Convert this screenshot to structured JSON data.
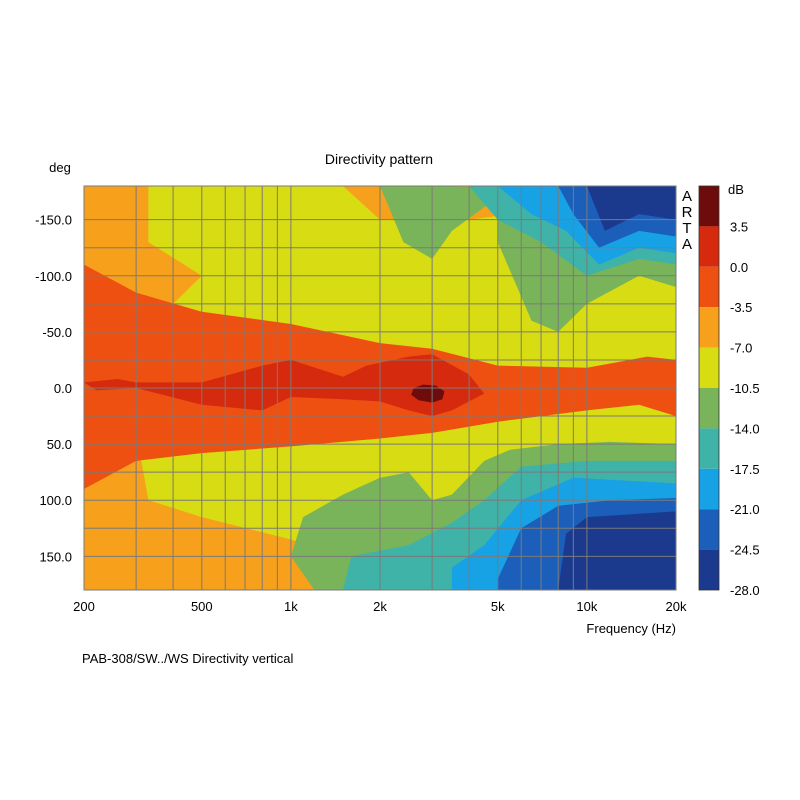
{
  "chart_data": {
    "type": "heatmap",
    "title": "Directivity pattern",
    "ylabel": "deg",
    "xlabel": "Frequency (Hz)",
    "caption": "PAB-308/SW../WS  Directivity vertical",
    "watermark": "ARTA",
    "x_scale": "log",
    "xlim": [
      200,
      20000
    ],
    "ylim": [
      -180,
      180
    ],
    "y_inverted": true,
    "grid": true,
    "x_ticks": [
      {
        "value": 200,
        "label": "200"
      },
      {
        "value": 500,
        "label": "500"
      },
      {
        "value": 1000,
        "label": "1k"
      },
      {
        "value": 2000,
        "label": "2k"
      },
      {
        "value": 5000,
        "label": "5k"
      },
      {
        "value": 10000,
        "label": "10k"
      },
      {
        "value": 20000,
        "label": "20k"
      }
    ],
    "y_ticks": [
      {
        "value": -150,
        "label": "-150.0"
      },
      {
        "value": -100,
        "label": "-100.0"
      },
      {
        "value": -50,
        "label": "-50.0"
      },
      {
        "value": 0,
        "label": "0.0"
      },
      {
        "value": 50,
        "label": "50.0"
      },
      {
        "value": 100,
        "label": "100.0"
      },
      {
        "value": 150,
        "label": "150.0"
      }
    ],
    "colorbar": {
      "unit": "dB",
      "range": [
        -28,
        7
      ],
      "tick_labels": [
        "3.5",
        "0.0",
        "-3.5",
        "-7.0",
        "-10.5",
        "-14.0",
        "-17.5",
        "-21.0",
        "-24.5",
        "-28.0"
      ],
      "bands": [
        {
          "from": 3.5,
          "to": 7,
          "color": "#6e0b0b"
        },
        {
          "from": 0,
          "to": 3.5,
          "color": "#d52a0d"
        },
        {
          "from": -3.5,
          "to": 0,
          "color": "#ee5012"
        },
        {
          "from": -7,
          "to": -3.5,
          "color": "#f6a01c"
        },
        {
          "from": -10.5,
          "to": -7,
          "color": "#d8dc12"
        },
        {
          "from": -14,
          "to": -10.5,
          "color": "#79b45a"
        },
        {
          "from": -17.5,
          "to": -14,
          "color": "#3fb3a8"
        },
        {
          "from": -21,
          "to": -17.5,
          "color": "#18a2e6"
        },
        {
          "from": -24.5,
          "to": -21,
          "color": "#1b5fba"
        },
        {
          "from": -28,
          "to": -24.5,
          "color": "#1b3a8e"
        }
      ]
    },
    "contours": [
      {
        "level": -7,
        "points": [
          [
            200,
            -180
          ],
          [
            200,
            180
          ],
          [
            20000,
            180
          ],
          [
            20000,
            -180
          ]
        ]
      },
      {
        "level": -10.5,
        "points": [
          [
            330,
            -180
          ],
          [
            1500,
            -180
          ],
          [
            2000,
            -150
          ],
          [
            4000,
            -150
          ],
          [
            20000,
            -175
          ],
          [
            20000,
            180
          ],
          [
            4000,
            180
          ],
          [
            2500,
            175
          ],
          [
            1500,
            150
          ],
          [
            1000,
            135
          ],
          [
            500,
            115
          ],
          [
            330,
            100
          ],
          [
            310,
            60
          ],
          [
            350,
            -60
          ],
          [
            500,
            -100
          ],
          [
            330,
            -130
          ]
        ]
      },
      {
        "level": -3.5,
        "points": [
          [
            200,
            -110
          ],
          [
            300,
            -85
          ],
          [
            500,
            -68
          ],
          [
            1000,
            -57
          ],
          [
            2000,
            -40
          ],
          [
            3000,
            -35
          ],
          [
            5000,
            -20
          ],
          [
            10000,
            -18
          ],
          [
            16000,
            -28
          ],
          [
            20000,
            -25
          ],
          [
            20000,
            25
          ],
          [
            15000,
            15
          ],
          [
            10000,
            20
          ],
          [
            5000,
            30
          ],
          [
            3000,
            40
          ],
          [
            2000,
            45
          ],
          [
            1000,
            52
          ],
          [
            500,
            58
          ],
          [
            300,
            65
          ],
          [
            200,
            90
          ]
        ]
      },
      {
        "level": 0,
        "points": [
          [
            200,
            -5
          ],
          [
            260,
            -8
          ],
          [
            300,
            -5
          ],
          [
            500,
            -5
          ],
          [
            800,
            -20
          ],
          [
            1000,
            -25
          ],
          [
            1500,
            -10
          ],
          [
            1800,
            -20
          ],
          [
            2500,
            -28
          ],
          [
            3000,
            -30
          ],
          [
            4000,
            -12
          ],
          [
            4500,
            5
          ],
          [
            3500,
            20
          ],
          [
            3000,
            25
          ],
          [
            2500,
            20
          ],
          [
            2000,
            12
          ],
          [
            1500,
            10
          ],
          [
            1000,
            8
          ],
          [
            800,
            20
          ],
          [
            500,
            15
          ],
          [
            300,
            0
          ],
          [
            220,
            2
          ]
        ]
      },
      {
        "level": 3.5,
        "points": [
          [
            2600,
            0
          ],
          [
            2800,
            -3
          ],
          [
            3100,
            -2
          ],
          [
            3300,
            3
          ],
          [
            3250,
            10
          ],
          [
            3000,
            13
          ],
          [
            2700,
            11
          ],
          [
            2550,
            6
          ]
        ]
      },
      {
        "level": -14,
        "points": [
          [
            800,
            -180
          ],
          [
            2000,
            -180
          ],
          [
            2400,
            -130
          ],
          [
            3000,
            -115
          ],
          [
            3500,
            -140
          ],
          [
            5000,
            -170
          ],
          [
            5000,
            -130
          ],
          [
            6500,
            -60
          ],
          [
            8000,
            -50
          ],
          [
            10000,
            -75
          ],
          [
            15000,
            -100
          ],
          [
            20000,
            -90
          ],
          [
            20000,
            -175
          ],
          [
            3000,
            -180
          ]
        ]
      },
      {
        "level": -14,
        "points": [
          [
            1500,
            95
          ],
          [
            2000,
            80
          ],
          [
            2500,
            75
          ],
          [
            3000,
            100
          ],
          [
            3500,
            95
          ],
          [
            4500,
            65
          ],
          [
            5500,
            55
          ],
          [
            8000,
            50
          ],
          [
            12000,
            48
          ],
          [
            20000,
            50
          ],
          [
            20000,
            180
          ],
          [
            1200,
            180
          ],
          [
            1000,
            150
          ],
          [
            1100,
            115
          ]
        ]
      },
      {
        "level": -17.5,
        "points": [
          [
            4000,
            -180
          ],
          [
            8000,
            -180
          ],
          [
            14000,
            -180
          ],
          [
            20000,
            -175
          ],
          [
            20000,
            -110
          ],
          [
            15000,
            -115
          ],
          [
            10000,
            -100
          ],
          [
            7000,
            -130
          ],
          [
            5000,
            -150
          ]
        ]
      },
      {
        "level": -17.5,
        "points": [
          [
            1600,
            150
          ],
          [
            2500,
            140
          ],
          [
            3500,
            120
          ],
          [
            4500,
            100
          ],
          [
            6000,
            70
          ],
          [
            10000,
            65
          ],
          [
            20000,
            65
          ],
          [
            20000,
            180
          ],
          [
            1500,
            180
          ]
        ]
      },
      {
        "level": -21,
        "points": [
          [
            5000,
            -180
          ],
          [
            10000,
            -180
          ],
          [
            20000,
            -180
          ],
          [
            20000,
            -120
          ],
          [
            15000,
            -125
          ],
          [
            11000,
            -110
          ],
          [
            8500,
            -140
          ],
          [
            6500,
            -155
          ]
        ]
      },
      {
        "level": -21,
        "points": [
          [
            3500,
            160
          ],
          [
            4500,
            140
          ],
          [
            6000,
            100
          ],
          [
            9000,
            80
          ],
          [
            20000,
            85
          ],
          [
            20000,
            180
          ],
          [
            3500,
            180
          ]
        ]
      },
      {
        "level": -24.5,
        "points": [
          [
            8000,
            -180
          ],
          [
            20000,
            -180
          ],
          [
            20000,
            -135
          ],
          [
            15000,
            -140
          ],
          [
            11000,
            -125
          ],
          [
            9000,
            -155
          ]
        ]
      },
      {
        "level": -24.5,
        "points": [
          [
            5000,
            170
          ],
          [
            6000,
            125
          ],
          [
            8000,
            105
          ],
          [
            12000,
            100
          ],
          [
            20000,
            98
          ],
          [
            20000,
            180
          ],
          [
            5000,
            180
          ]
        ]
      },
      {
        "level": -28,
        "points": [
          [
            10000,
            -180
          ],
          [
            20000,
            -180
          ],
          [
            20000,
            -150
          ],
          [
            15000,
            -155
          ],
          [
            11500,
            -140
          ]
        ]
      },
      {
        "level": -28,
        "points": [
          [
            8500,
            130
          ],
          [
            10000,
            115
          ],
          [
            20000,
            110
          ],
          [
            20000,
            180
          ],
          [
            8000,
            180
          ]
        ]
      }
    ]
  }
}
